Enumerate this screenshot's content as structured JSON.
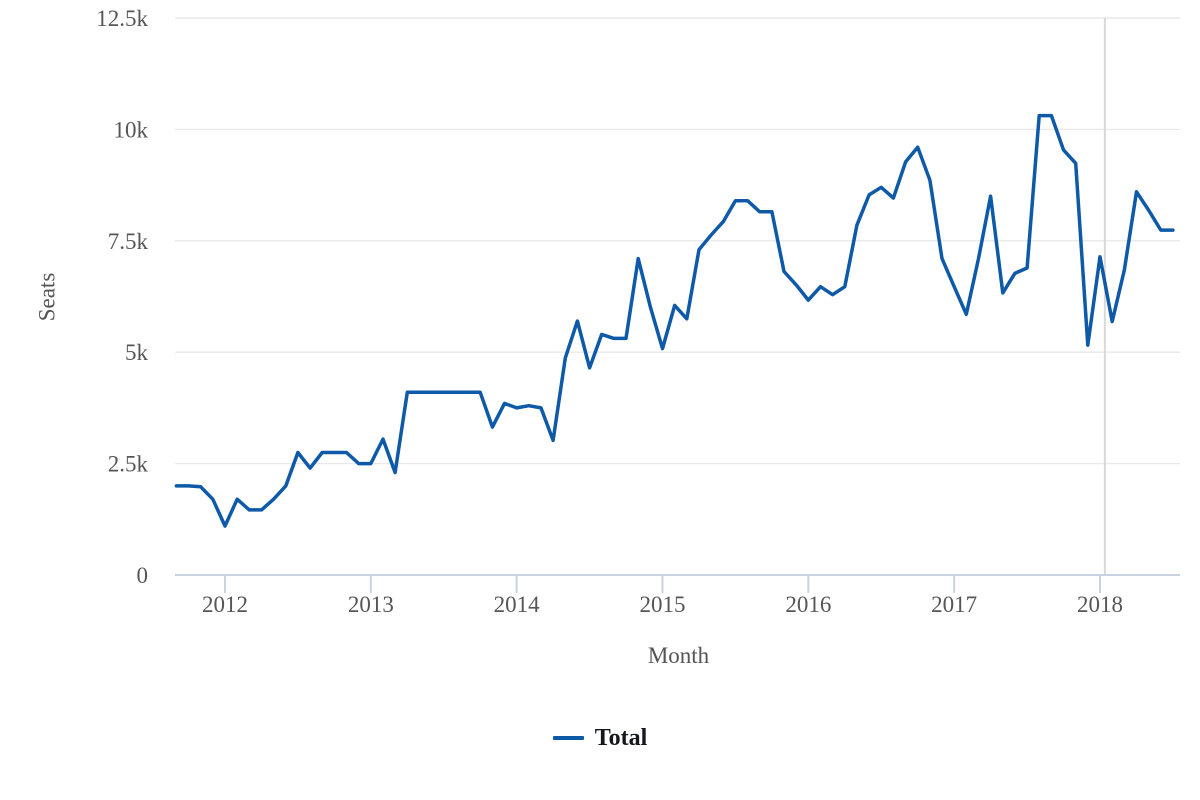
{
  "chart_data": {
    "type": "line",
    "title": "",
    "xlabel": "Month",
    "ylabel": "Seats",
    "ylim": [
      0,
      12500
    ],
    "grid": true,
    "legend_position": "bottom-center",
    "y_ticks": {
      "values": [
        0,
        2500,
        5000,
        7500,
        10000,
        12500
      ],
      "labels": [
        "0",
        "2.5k",
        "5k",
        "7.5k",
        "10k",
        "12.5k"
      ]
    },
    "x_tick_years": [
      2012,
      2013,
      2014,
      2015,
      2016,
      2017,
      2018
    ],
    "reference_line": {
      "month": "2018-01",
      "offset_months": 0.4
    },
    "series": [
      {
        "name": "Total",
        "color": "#0e59a8",
        "points": [
          [
            "2011-09",
            2000
          ],
          [
            "2011-10",
            2000
          ],
          [
            "2011-11",
            1980
          ],
          [
            "2011-12",
            1700
          ],
          [
            "2012-01",
            1100
          ],
          [
            "2012-02",
            1700
          ],
          [
            "2012-03",
            1460
          ],
          [
            "2012-04",
            1460
          ],
          [
            "2012-05",
            1700
          ],
          [
            "2012-06",
            2000
          ],
          [
            "2012-07",
            2750
          ],
          [
            "2012-08",
            2400
          ],
          [
            "2012-09",
            2750
          ],
          [
            "2012-10",
            2750
          ],
          [
            "2012-11",
            2750
          ],
          [
            "2012-12",
            2500
          ],
          [
            "2013-01",
            2500
          ],
          [
            "2013-02",
            3050
          ],
          [
            "2013-03",
            2300
          ],
          [
            "2013-04",
            4100
          ],
          [
            "2013-05",
            4100
          ],
          [
            "2013-06",
            4100
          ],
          [
            "2013-07",
            4100
          ],
          [
            "2013-08",
            4100
          ],
          [
            "2013-09",
            4100
          ],
          [
            "2013-10",
            4100
          ],
          [
            "2013-11",
            3320
          ],
          [
            "2013-12",
            3850
          ],
          [
            "2014-01",
            3750
          ],
          [
            "2014-02",
            3800
          ],
          [
            "2014-03",
            3750
          ],
          [
            "2014-04",
            3020
          ],
          [
            "2014-05",
            4870
          ],
          [
            "2014-06",
            5700
          ],
          [
            "2014-07",
            4650
          ],
          [
            "2014-08",
            5400
          ],
          [
            "2014-09",
            5310
          ],
          [
            "2014-10",
            5310
          ],
          [
            "2014-11",
            7100
          ],
          [
            "2014-12",
            6020
          ],
          [
            "2015-01",
            5080
          ],
          [
            "2015-02",
            6050
          ],
          [
            "2015-03",
            5750
          ],
          [
            "2015-04",
            7300
          ],
          [
            "2015-05",
            7630
          ],
          [
            "2015-06",
            7930
          ],
          [
            "2015-07",
            8400
          ],
          [
            "2015-08",
            8400
          ],
          [
            "2015-09",
            8150
          ],
          [
            "2015-10",
            8150
          ],
          [
            "2015-11",
            6810
          ],
          [
            "2015-12",
            6510
          ],
          [
            "2016-01",
            6170
          ],
          [
            "2016-02",
            6470
          ],
          [
            "2016-03",
            6290
          ],
          [
            "2016-04",
            6470
          ],
          [
            "2016-05",
            7850
          ],
          [
            "2016-06",
            8530
          ],
          [
            "2016-07",
            8700
          ],
          [
            "2016-08",
            8460
          ],
          [
            "2016-09",
            9270
          ],
          [
            "2016-10",
            9600
          ],
          [
            "2016-11",
            8860
          ],
          [
            "2016-12",
            7100
          ],
          [
            "2017-01",
            6470
          ],
          [
            "2017-02",
            5850
          ],
          [
            "2017-03",
            7100
          ],
          [
            "2017-04",
            8500
          ],
          [
            "2017-05",
            6330
          ],
          [
            "2017-06",
            6770
          ],
          [
            "2017-07",
            6890
          ],
          [
            "2017-08",
            10310
          ],
          [
            "2017-09",
            10310
          ],
          [
            "2017-10",
            9540
          ],
          [
            "2017-11",
            9240
          ],
          [
            "2017-12",
            5160
          ],
          [
            "2018-01",
            7140
          ],
          [
            "2018-02",
            5690
          ],
          [
            "2018-03",
            6840
          ],
          [
            "2018-04",
            8600
          ],
          [
            "2018-05",
            8190
          ],
          [
            "2018-06",
            7740
          ],
          [
            "2018-07",
            7740
          ]
        ]
      }
    ]
  },
  "axis_titles": {
    "x": "Month",
    "y": "Seats"
  },
  "legend": {
    "items": [
      {
        "label": "Total",
        "color": "#0e59a8"
      }
    ]
  },
  "colors": {
    "line": "#0e59a8",
    "gridline": "#e9e9e9",
    "axis_line": "#c8d2e0",
    "reference_line": "#d8d8d8",
    "tick_label": "#565656",
    "axis_title": "#545454",
    "legend_text": "#14181c",
    "background": "#ffffff"
  }
}
